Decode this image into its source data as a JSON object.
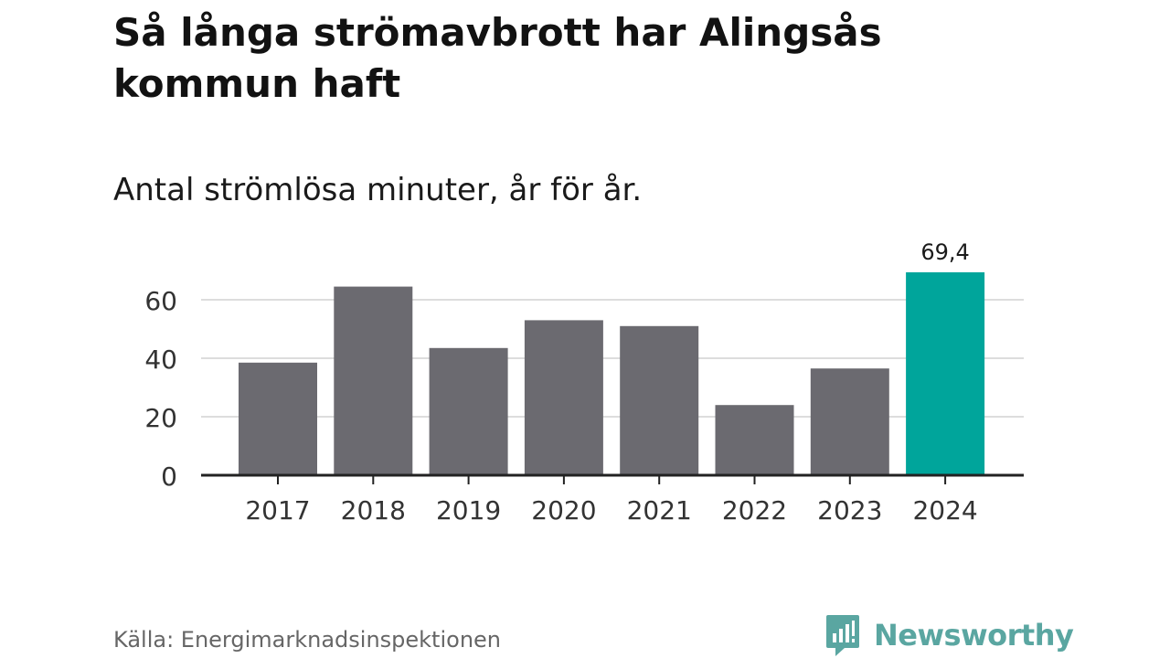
{
  "title": "Så långa strömavbrott har Alingsås kommun haft",
  "subtitle": "Antal strömlösa minuter, år för år.",
  "source": "Källa: Energimarknadsinspektionen",
  "brand": "Newsworthy",
  "colors": {
    "bar": "#6b6a70",
    "highlight": "#00a59b",
    "grid": "#dddddd",
    "axis": "#222222",
    "brand": "#5aa6a1"
  },
  "chart_data": {
    "type": "bar",
    "categories": [
      "2017",
      "2018",
      "2019",
      "2020",
      "2021",
      "2022",
      "2023",
      "2024"
    ],
    "values": [
      38.5,
      64.5,
      43.5,
      53,
      51,
      24,
      36.5,
      69.4
    ],
    "highlight_index": 7,
    "data_labels": [
      {
        "index": 7,
        "text": "69,4"
      }
    ],
    "yticks": [
      0,
      20,
      40,
      60
    ],
    "ylim": [
      0,
      70
    ],
    "grid": true,
    "title": "Så långa strömavbrott har Alingsås kommun haft",
    "subtitle": "Antal strömlösa minuter, år för år.",
    "xlabel": "",
    "ylabel": ""
  }
}
